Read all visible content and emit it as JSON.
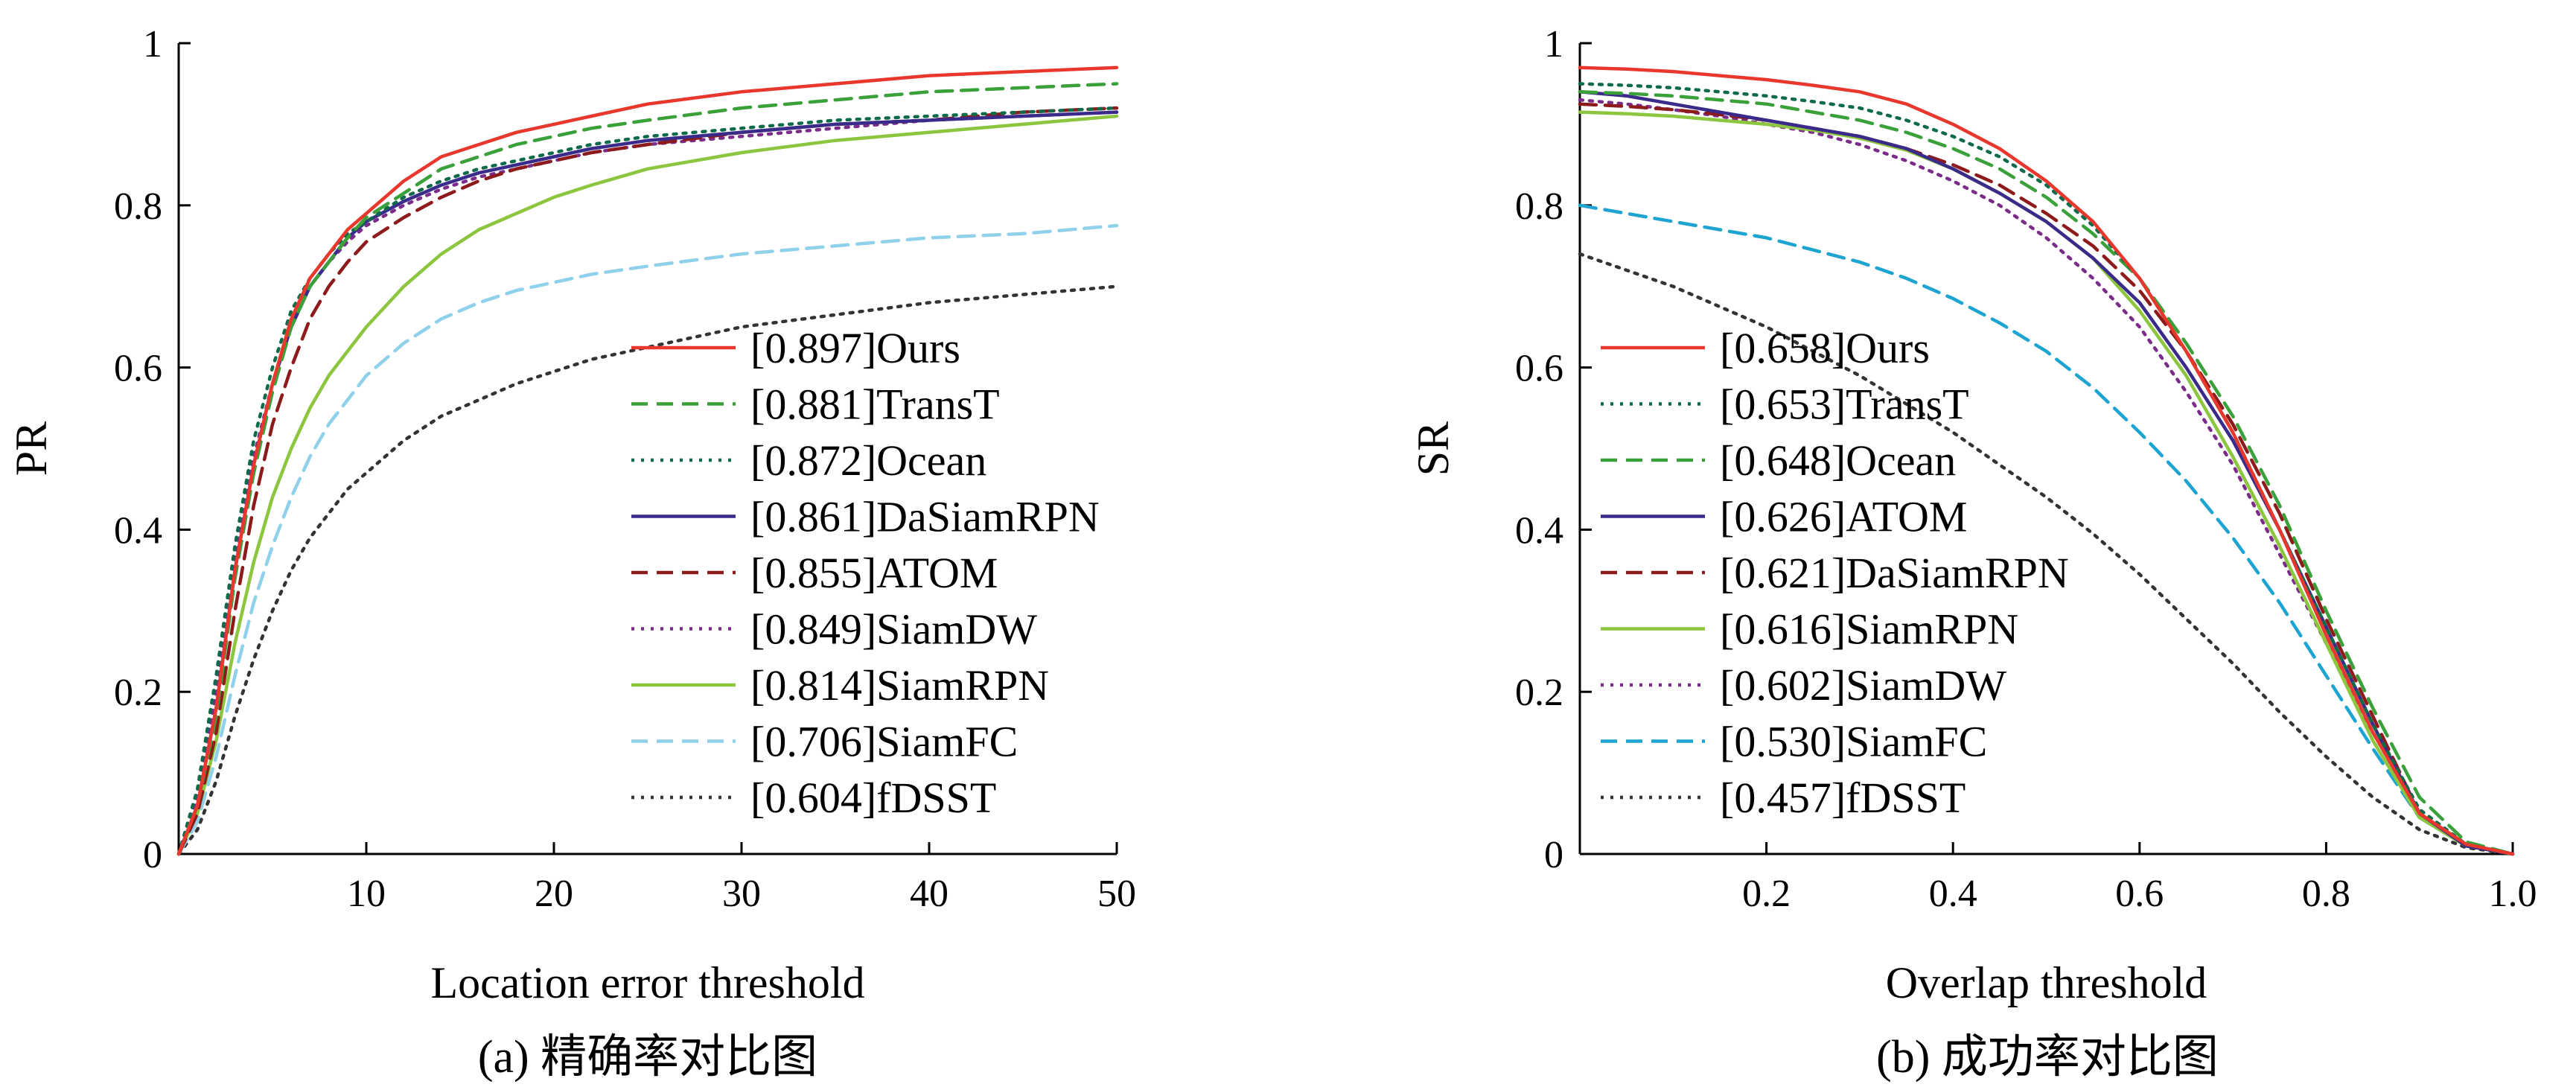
{
  "chart_data": [
    {
      "type": "line",
      "caption": "(a) 精确率对比图",
      "xlabel": "Location error threshold",
      "ylabel": "PR",
      "xlim": [
        0,
        50
      ],
      "ylim": [
        0,
        1
      ],
      "xticks": [
        "10",
        "20",
        "30",
        "40",
        "50"
      ],
      "yticks": [
        "0",
        "0.2",
        "0.4",
        "0.6",
        "0.8",
        "1"
      ],
      "legend_position": "bottom-right",
      "x": [
        0,
        1,
        2,
        3,
        4,
        5,
        6,
        7,
        8,
        9,
        10,
        12,
        14,
        16,
        18,
        20,
        22,
        25,
        30,
        35,
        40,
        45,
        50
      ],
      "series": [
        {
          "name": "[0.897]Ours",
          "color": "#e8382d",
          "dash": "solid",
          "values": [
            0.0,
            0.06,
            0.18,
            0.35,
            0.48,
            0.58,
            0.66,
            0.71,
            0.74,
            0.77,
            0.79,
            0.83,
            0.86,
            0.875,
            0.89,
            0.9,
            0.91,
            0.925,
            0.94,
            0.95,
            0.96,
            0.965,
            0.97
          ]
        },
        {
          "name": "[0.881]TransT",
          "color": "#3aa03a",
          "dash": "dashed",
          "values": [
            0.0,
            0.06,
            0.17,
            0.34,
            0.47,
            0.57,
            0.65,
            0.7,
            0.73,
            0.76,
            0.785,
            0.815,
            0.845,
            0.86,
            0.875,
            0.885,
            0.895,
            0.905,
            0.92,
            0.93,
            0.94,
            0.945,
            0.95
          ]
        },
        {
          "name": "[0.872]Ocean",
          "color": "#0e6b4a",
          "dash": "dotted",
          "values": [
            0.0,
            0.08,
            0.22,
            0.38,
            0.51,
            0.6,
            0.67,
            0.71,
            0.74,
            0.765,
            0.78,
            0.81,
            0.83,
            0.845,
            0.855,
            0.865,
            0.875,
            0.885,
            0.895,
            0.905,
            0.91,
            0.915,
            0.92
          ]
        },
        {
          "name": "[0.861]DaSiamRPN",
          "color": "#3a2a8a",
          "dash": "solid",
          "values": [
            0.0,
            0.06,
            0.18,
            0.35,
            0.48,
            0.58,
            0.65,
            0.7,
            0.73,
            0.76,
            0.78,
            0.805,
            0.825,
            0.84,
            0.85,
            0.86,
            0.87,
            0.88,
            0.89,
            0.9,
            0.905,
            0.91,
            0.915
          ]
        },
        {
          "name": "[0.855]ATOM",
          "color": "#8e1b1b",
          "dash": "dashed",
          "values": [
            0.0,
            0.05,
            0.15,
            0.3,
            0.43,
            0.53,
            0.6,
            0.66,
            0.7,
            0.73,
            0.755,
            0.785,
            0.81,
            0.83,
            0.845,
            0.855,
            0.865,
            0.875,
            0.89,
            0.9,
            0.905,
            0.915,
            0.92
          ]
        },
        {
          "name": "[0.849]SiamDW",
          "color": "#7b2c8a",
          "dash": "dotted",
          "values": [
            0.0,
            0.07,
            0.2,
            0.36,
            0.49,
            0.58,
            0.65,
            0.7,
            0.73,
            0.755,
            0.775,
            0.8,
            0.82,
            0.835,
            0.845,
            0.855,
            0.865,
            0.875,
            0.885,
            0.895,
            0.905,
            0.91,
            0.915
          ]
        },
        {
          "name": "[0.814]SiamRPN",
          "color": "#8cc63f",
          "dash": "solid",
          "values": [
            0.0,
            0.05,
            0.14,
            0.26,
            0.36,
            0.44,
            0.5,
            0.55,
            0.59,
            0.62,
            0.65,
            0.7,
            0.74,
            0.77,
            0.79,
            0.81,
            0.825,
            0.845,
            0.865,
            0.88,
            0.89,
            0.9,
            0.91
          ]
        },
        {
          "name": "[0.706]SiamFC",
          "color": "#8fd0ea",
          "dash": "dashed",
          "values": [
            0.0,
            0.04,
            0.12,
            0.22,
            0.31,
            0.38,
            0.44,
            0.49,
            0.53,
            0.56,
            0.59,
            0.63,
            0.66,
            0.68,
            0.695,
            0.705,
            0.715,
            0.725,
            0.74,
            0.75,
            0.76,
            0.765,
            0.775
          ]
        },
        {
          "name": "[0.604]fDSST",
          "color": "#333333",
          "dash": "dotted",
          "values": [
            0.0,
            0.03,
            0.09,
            0.17,
            0.24,
            0.3,
            0.35,
            0.39,
            0.42,
            0.45,
            0.47,
            0.51,
            0.54,
            0.56,
            0.58,
            0.595,
            0.61,
            0.625,
            0.65,
            0.665,
            0.68,
            0.69,
            0.7
          ]
        }
      ]
    },
    {
      "type": "line",
      "caption": "(b) 成功率对比图",
      "xlabel": "Overlap threshold",
      "ylabel": "SR",
      "xlim": [
        0,
        1
      ],
      "ylim": [
        0,
        1
      ],
      "xticks": [
        "0.2",
        "0.4",
        "0.6",
        "0.8",
        "1.0"
      ],
      "yticks": [
        "0",
        "0.2",
        "0.4",
        "0.6",
        "0.8",
        "1"
      ],
      "legend_position": "bottom-left",
      "x": [
        0,
        0.05,
        0.1,
        0.15,
        0.2,
        0.25,
        0.3,
        0.35,
        0.4,
        0.45,
        0.5,
        0.55,
        0.6,
        0.65,
        0.7,
        0.75,
        0.8,
        0.85,
        0.9,
        0.95,
        1.0
      ],
      "series": [
        {
          "name": "[0.658]Ours",
          "color": "#e8382d",
          "dash": "solid",
          "values": [
            0.97,
            0.968,
            0.965,
            0.96,
            0.955,
            0.948,
            0.94,
            0.925,
            0.9,
            0.87,
            0.83,
            0.78,
            0.71,
            0.62,
            0.52,
            0.4,
            0.27,
            0.15,
            0.05,
            0.012,
            0.0
          ]
        },
        {
          "name": "[0.653]TransT",
          "color": "#0e6b4a",
          "dash": "dotted",
          "values": [
            0.95,
            0.948,
            0.945,
            0.94,
            0.935,
            0.928,
            0.92,
            0.905,
            0.885,
            0.86,
            0.825,
            0.775,
            0.71,
            0.62,
            0.52,
            0.4,
            0.28,
            0.16,
            0.055,
            0.012,
            0.0
          ]
        },
        {
          "name": "[0.648]Ocean",
          "color": "#3aa03a",
          "dash": "dashed",
          "values": [
            0.94,
            0.938,
            0.935,
            0.93,
            0.925,
            0.915,
            0.905,
            0.89,
            0.87,
            0.845,
            0.81,
            0.765,
            0.71,
            0.63,
            0.54,
            0.43,
            0.3,
            0.18,
            0.07,
            0.015,
            0.0
          ]
        },
        {
          "name": "[0.626]ATOM",
          "color": "#3a2a8a",
          "dash": "solid",
          "values": [
            0.94,
            0.935,
            0.925,
            0.915,
            0.905,
            0.895,
            0.885,
            0.87,
            0.845,
            0.815,
            0.78,
            0.735,
            0.68,
            0.6,
            0.51,
            0.4,
            0.28,
            0.16,
            0.05,
            0.01,
            0.0
          ]
        },
        {
          "name": "[0.621]DaSiamRPN",
          "color": "#8e1b1b",
          "dash": "dashed",
          "values": [
            0.925,
            0.922,
            0.918,
            0.912,
            0.905,
            0.895,
            0.885,
            0.87,
            0.85,
            0.825,
            0.79,
            0.75,
            0.695,
            0.62,
            0.53,
            0.42,
            0.29,
            0.17,
            0.05,
            0.01,
            0.0
          ]
        },
        {
          "name": "[0.616]SiamRPN",
          "color": "#8cc63f",
          "dash": "solid",
          "values": [
            0.915,
            0.913,
            0.91,
            0.905,
            0.9,
            0.893,
            0.883,
            0.868,
            0.845,
            0.815,
            0.78,
            0.735,
            0.67,
            0.59,
            0.49,
            0.38,
            0.26,
            0.14,
            0.045,
            0.01,
            0.0
          ]
        },
        {
          "name": "[0.602]SiamDW",
          "color": "#7b2c8a",
          "dash": "dotted",
          "values": [
            0.93,
            0.925,
            0.918,
            0.91,
            0.9,
            0.89,
            0.875,
            0.855,
            0.83,
            0.8,
            0.76,
            0.71,
            0.65,
            0.57,
            0.48,
            0.37,
            0.26,
            0.15,
            0.05,
            0.01,
            0.0
          ]
        },
        {
          "name": "[0.530]SiamFC",
          "color": "#1ea4d0",
          "dash": "dashed",
          "values": [
            0.8,
            0.79,
            0.78,
            0.77,
            0.76,
            0.745,
            0.73,
            0.71,
            0.685,
            0.655,
            0.62,
            0.575,
            0.52,
            0.46,
            0.39,
            0.31,
            0.22,
            0.13,
            0.045,
            0.01,
            0.0
          ]
        },
        {
          "name": "[0.457]fDSST",
          "color": "#333333",
          "dash": "dotted",
          "values": [
            0.74,
            0.72,
            0.7,
            0.675,
            0.65,
            0.62,
            0.59,
            0.555,
            0.52,
            0.48,
            0.44,
            0.395,
            0.345,
            0.29,
            0.235,
            0.175,
            0.12,
            0.07,
            0.03,
            0.008,
            0.0
          ]
        }
      ]
    }
  ]
}
